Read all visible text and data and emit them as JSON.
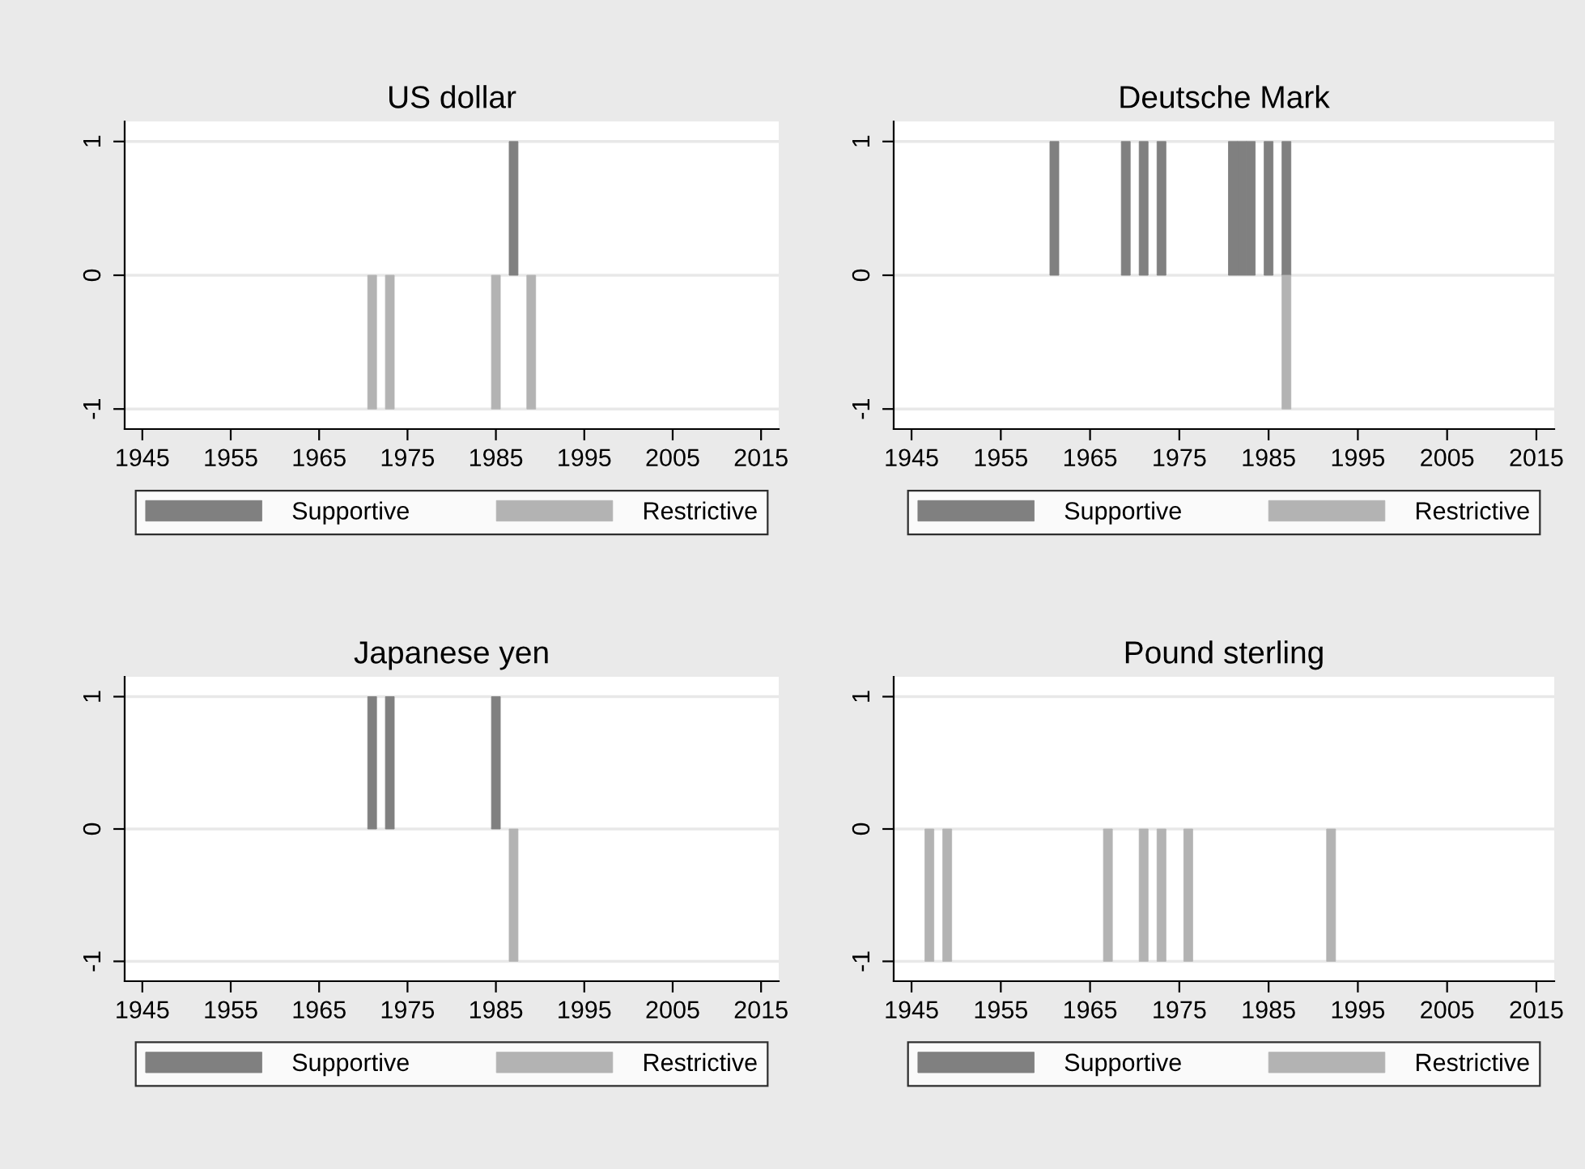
{
  "chart_data": [
    {
      "type": "bar",
      "title": "US dollar",
      "xlim": [
        1943,
        2017
      ],
      "xticks": [
        1945,
        1955,
        1965,
        1975,
        1985,
        1995,
        2005,
        2015
      ],
      "ylim": [
        -1.15,
        1.15
      ],
      "yticks": [
        -1,
        0,
        1
      ],
      "grid": "y",
      "legend": "bottom",
      "series": [
        {
          "name": "Supportive",
          "color": "#808080",
          "x": [
            1987
          ],
          "values": [
            1
          ]
        },
        {
          "name": "Restrictive",
          "color": "#b3b3b3",
          "x": [
            1971,
            1973,
            1985,
            1989
          ],
          "values": [
            -1,
            -1,
            -1,
            -1
          ]
        }
      ]
    },
    {
      "type": "bar",
      "title": "Deutsche Mark",
      "xlim": [
        1943,
        2017
      ],
      "xticks": [
        1945,
        1955,
        1965,
        1975,
        1985,
        1995,
        2005,
        2015
      ],
      "ylim": [
        -1.15,
        1.15
      ],
      "yticks": [
        -1,
        0,
        1
      ],
      "grid": "y",
      "legend": "bottom",
      "series": [
        {
          "name": "Supportive",
          "color": "#808080",
          "x": [
            1961,
            1969,
            1971,
            1973,
            1981,
            1982,
            1983,
            1985,
            1987
          ],
          "values": [
            1,
            1,
            1,
            1,
            1,
            1,
            1,
            1,
            1
          ]
        },
        {
          "name": "Restrictive",
          "color": "#b3b3b3",
          "x": [
            1987
          ],
          "values": [
            -1
          ]
        }
      ]
    },
    {
      "type": "bar",
      "title": "Japanese yen",
      "xlim": [
        1943,
        2017
      ],
      "xticks": [
        1945,
        1955,
        1965,
        1975,
        1985,
        1995,
        2005,
        2015
      ],
      "ylim": [
        -1.15,
        1.15
      ],
      "yticks": [
        -1,
        0,
        1
      ],
      "grid": "y",
      "legend": "bottom",
      "series": [
        {
          "name": "Supportive",
          "color": "#808080",
          "x": [
            1971,
            1973,
            1985
          ],
          "values": [
            1,
            1,
            1
          ]
        },
        {
          "name": "Restrictive",
          "color": "#b3b3b3",
          "x": [
            1987
          ],
          "values": [
            -1
          ]
        }
      ]
    },
    {
      "type": "bar",
      "title": "Pound sterling",
      "xlim": [
        1943,
        2017
      ],
      "xticks": [
        1945,
        1955,
        1965,
        1975,
        1985,
        1995,
        2005,
        2015
      ],
      "ylim": [
        -1.15,
        1.15
      ],
      "yticks": [
        -1,
        0,
        1
      ],
      "grid": "y",
      "legend": "bottom",
      "series": [
        {
          "name": "Supportive",
          "color": "#808080"
        },
        {
          "name": "Restrictive",
          "color": "#b3b3b3",
          "x": [
            1947,
            1949,
            1967,
            1971,
            1973,
            1976,
            1992
          ],
          "values": [
            -1,
            -1,
            -1,
            -1,
            -1,
            -1,
            -1
          ]
        }
      ]
    }
  ]
}
